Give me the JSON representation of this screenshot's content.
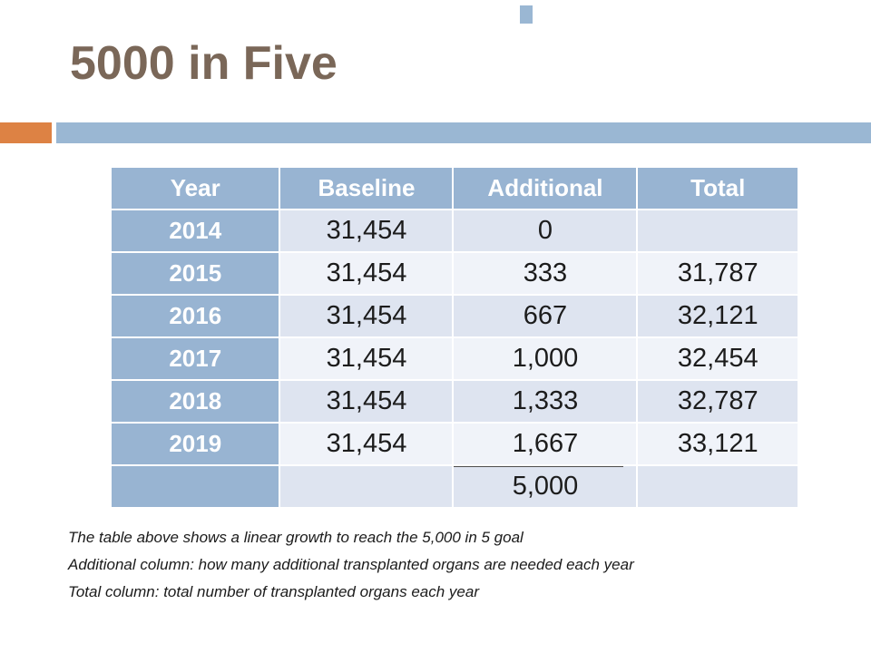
{
  "slide": {
    "title": "5000 in Five"
  },
  "table": {
    "headers": [
      "Year",
      "Baseline",
      "Additional",
      "Total"
    ],
    "rows": [
      {
        "year": "2014",
        "baseline": "31,454",
        "additional": "0",
        "total": ""
      },
      {
        "year": "2015",
        "baseline": "31,454",
        "additional": "333",
        "total": "31,787"
      },
      {
        "year": "2016",
        "baseline": "31,454",
        "additional": "667",
        "total": "32,121"
      },
      {
        "year": "2017",
        "baseline": "31,454",
        "additional": "1,000",
        "total": "32,454"
      },
      {
        "year": "2018",
        "baseline": "31,454",
        "additional": "1,333",
        "total": "32,787"
      },
      {
        "year": "2019",
        "baseline": "31,454",
        "additional": "1,667",
        "total": "33,121"
      },
      {
        "year": "",
        "baseline": "",
        "additional": "5,000",
        "total": ""
      }
    ]
  },
  "notes": [
    "The table above shows a linear growth to reach the 5,000 in 5 goal",
    "Additional column: how many additional transplanted organs are needed each year",
    "Total column: total number of transplanted organs each year"
  ],
  "colors": {
    "accent_orange": "#dd8244",
    "accent_blue": "#9ab7d3",
    "header_blue": "#98b4d2",
    "band_dark": "#dee4f0",
    "band_light": "#f0f3f9",
    "title_brown": "#7a6758",
    "sum_line": "#4d4d4d",
    "body_text": "#1c1c1c"
  }
}
